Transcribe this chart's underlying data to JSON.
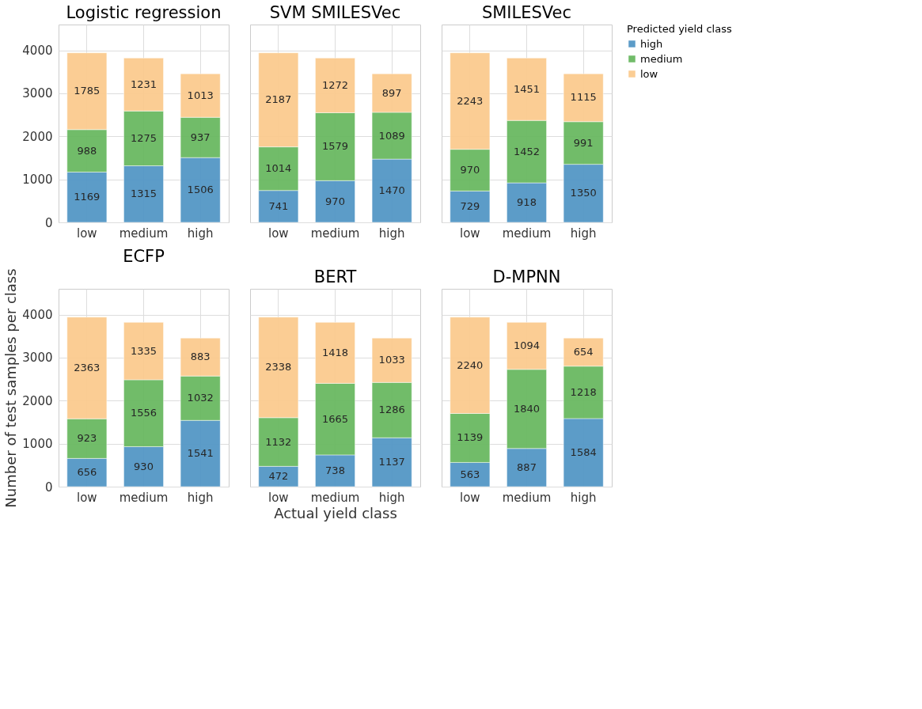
{
  "chart_data": [
    {
      "type": "bar",
      "title": "Logistic regression",
      "categories": [
        "low",
        "medium",
        "high"
      ],
      "stacked": true,
      "data_labels": true,
      "grid": true,
      "ylim": [
        0,
        4600
      ],
      "yticks": [
        0,
        1000,
        2000,
        3000,
        4000
      ],
      "legend": "right",
      "legend_title": "Predicted yield class",
      "series": [
        {
          "name": "high",
          "color": "#5497c6",
          "values": [
            1169,
            1315,
            1506
          ]
        },
        {
          "name": "medium",
          "color": "#6ab961",
          "values": [
            988,
            1275,
            937
          ]
        },
        {
          "name": "low",
          "color": "#fbcb8f",
          "values": [
            1785,
            1231,
            1013
          ]
        }
      ]
    },
    {
      "type": "bar",
      "title": "SVM SMILESVec",
      "categories": [
        "low",
        "medium",
        "high"
      ],
      "stacked": true,
      "data_labels": true,
      "grid": true,
      "ylim": [
        0,
        4600
      ],
      "yticks": [
        0,
        1000,
        2000,
        3000,
        4000
      ],
      "tick_labels": "x",
      "series": [
        {
          "color": "#5497c6",
          "values": [
            741,
            970,
            1470
          ]
        },
        {
          "color": "#6ab961",
          "values": [
            1014,
            1579,
            1089
          ]
        },
        {
          "color": "#fbcb8f",
          "values": [
            2187,
            1272,
            897
          ]
        }
      ]
    },
    {
      "type": "bar",
      "title": "SMILESVec",
      "categories": [
        "low",
        "medium",
        "high"
      ],
      "stacked": true,
      "data_labels": true,
      "grid": true,
      "ylim": [
        0,
        4600
      ],
      "yticks": [
        0,
        1000,
        2000,
        3000,
        4000
      ],
      "tick_labels": "x",
      "series": [
        {
          "color": "#5497c6",
          "values": [
            729,
            918,
            1350
          ]
        },
        {
          "color": "#6ab961",
          "values": [
            970,
            1452,
            991
          ]
        },
        {
          "color": "#fbcb8f",
          "values": [
            2243,
            1451,
            1115
          ]
        }
      ]
    },
    {
      "type": "bar",
      "title": "ECFP",
      "ylabel": "Number of test samples per class",
      "categories": [
        "low",
        "medium",
        "high"
      ],
      "stacked": true,
      "data_labels": true,
      "grid": true,
      "ylim": [
        0,
        4600
      ],
      "yticks": [
        0,
        1000,
        2000,
        3000,
        4000
      ],
      "series": [
        {
          "color": "#5497c6",
          "values": [
            656,
            930,
            1541
          ]
        },
        {
          "color": "#6ab961",
          "values": [
            923,
            1556,
            1032
          ]
        },
        {
          "color": "#fbcb8f",
          "values": [
            2363,
            1335,
            883
          ]
        }
      ]
    },
    {
      "type": "bar",
      "title": "BERT",
      "xlabel": "Actual yield class",
      "categories": [
        "low",
        "medium",
        "high"
      ],
      "stacked": true,
      "data_labels": true,
      "grid": true,
      "ylim": [
        0,
        4600
      ],
      "yticks": [
        0,
        1000,
        2000,
        3000,
        4000
      ],
      "tick_labels": "x",
      "series": [
        {
          "color": "#5497c6",
          "values": [
            472,
            738,
            1137
          ]
        },
        {
          "color": "#6ab961",
          "values": [
            1132,
            1665,
            1286
          ]
        },
        {
          "color": "#fbcb8f",
          "values": [
            2338,
            1418,
            1033
          ]
        }
      ]
    },
    {
      "type": "bar",
      "title": "D-MPNN",
      "categories": [
        "low",
        "medium",
        "high"
      ],
      "stacked": true,
      "data_labels": true,
      "grid": true,
      "ylim": [
        0,
        4600
      ],
      "yticks": [
        0,
        1000,
        2000,
        3000,
        4000
      ],
      "tick_labels": "x",
      "series": [
        {
          "color": "#5497c6",
          "values": [
            563,
            887,
            1584
          ]
        },
        {
          "color": "#6ab961",
          "values": [
            1139,
            1840,
            1218
          ]
        },
        {
          "color": "#fbcb8f",
          "values": [
            2240,
            1094,
            654
          ]
        }
      ]
    }
  ]
}
